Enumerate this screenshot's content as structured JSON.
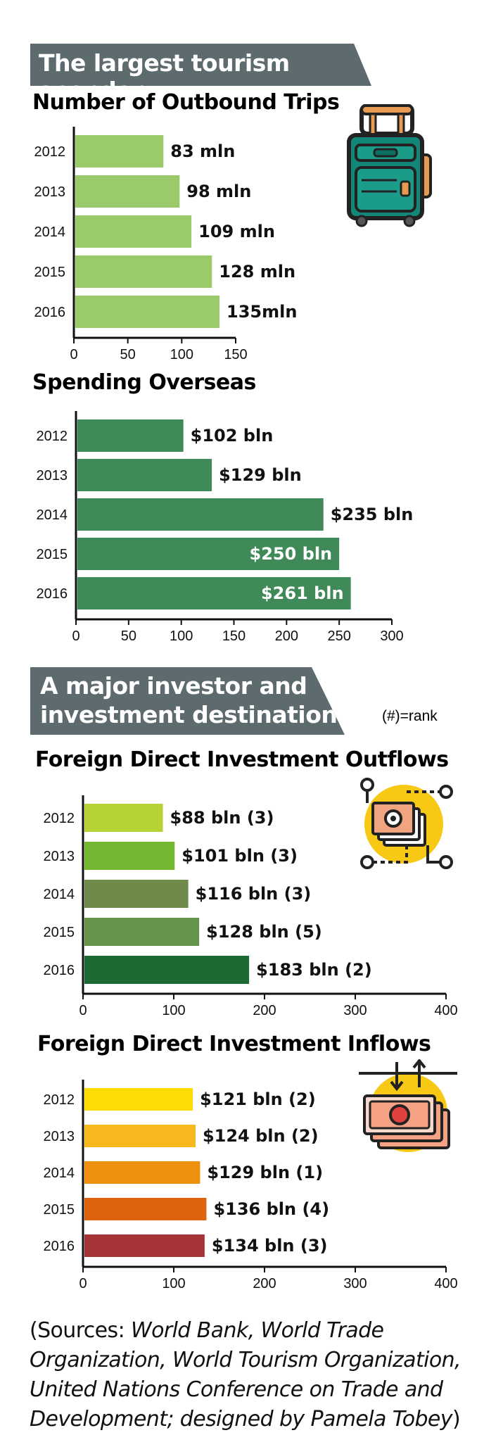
{
  "banners": {
    "tourism": "The largest tourism spender",
    "investment_line1": "A major investor and",
    "investment_line2": "investment destination"
  },
  "rank_note": "(#)=rank",
  "sources": {
    "open": "(Sources: ",
    "body": "World Bank, World Trade Organization, World Tourism Organization, United Nations Conference on Trade and Development; designed by Pamela Tobey",
    "close": ")"
  },
  "icons": {
    "trips_chart": "suitcase-icon",
    "outflows_chart": "money-out-icon",
    "inflows_chart": "money-in-icon"
  },
  "colors": {
    "banner": "#5d6b6e",
    "trips_bar": "#9bca6b",
    "spending_bar": "#3f8a58"
  },
  "chart_data": [
    {
      "id": "trips",
      "type": "bar",
      "orientation": "horizontal",
      "title": "Number of Outbound Trips",
      "categories": [
        "2012",
        "2013",
        "2014",
        "2015",
        "2016"
      ],
      "values": [
        83,
        98,
        109,
        128,
        135
      ],
      "labels": [
        "83 mln",
        "98 mln",
        "109 mln",
        "128 mln",
        "135mln"
      ],
      "colors": [
        "#9bca6b",
        "#9bca6b",
        "#9bca6b",
        "#9bca6b",
        "#9bca6b"
      ],
      "xlim": [
        0,
        150
      ],
      "xticks": [
        0,
        50,
        100,
        150
      ],
      "inside_labels": [
        false,
        false,
        false,
        false,
        false
      ]
    },
    {
      "id": "spending",
      "type": "bar",
      "orientation": "horizontal",
      "title": "Spending Overseas",
      "categories": [
        "2012",
        "2013",
        "2014",
        "2015",
        "2016"
      ],
      "values": [
        102,
        129,
        235,
        250,
        261
      ],
      "labels": [
        "$102 bln",
        "$129 bln",
        "$235 bln",
        "$250 bln",
        "$261 bln"
      ],
      "colors": [
        "#3f8a58",
        "#3f8a58",
        "#3f8a58",
        "#3f8a58",
        "#3f8a58"
      ],
      "xlim": [
        0,
        300
      ],
      "xticks": [
        0,
        50,
        100,
        150,
        200,
        250,
        300
      ],
      "inside_labels": [
        false,
        false,
        false,
        true,
        true
      ]
    },
    {
      "id": "outflows",
      "type": "bar",
      "orientation": "horizontal",
      "title": "Foreign Direct Investment Outflows",
      "categories": [
        "2012",
        "2013",
        "2014",
        "2015",
        "2016"
      ],
      "values": [
        88,
        101,
        116,
        128,
        183
      ],
      "ranks": [
        3,
        3,
        3,
        5,
        2
      ],
      "labels": [
        "$88 bln (3)",
        "$101 bln (3)",
        "$116 bln (3)",
        "$128 bln (5)",
        "$183 bln (2)"
      ],
      "colors": [
        "#b5d335",
        "#72b72f",
        "#6f8b4c",
        "#66944d",
        "#1c6b35"
      ],
      "xlim": [
        0,
        400
      ],
      "xticks": [
        0,
        100,
        200,
        300,
        400
      ],
      "inside_labels": [
        false,
        false,
        false,
        false,
        false
      ]
    },
    {
      "id": "inflows",
      "type": "bar",
      "orientation": "horizontal",
      "title": "Foreign Direct Investment Inflows",
      "categories": [
        "2012",
        "2013",
        "2014",
        "2015",
        "2016"
      ],
      "values": [
        121,
        124,
        129,
        136,
        134
      ],
      "ranks": [
        2,
        2,
        1,
        4,
        3
      ],
      "labels": [
        "$121 bln (2)",
        "$124 bln  (2)",
        "$129 bln  (1)",
        "$136 bln  (4)",
        "$134 bln  (3)"
      ],
      "colors": [
        "#fbdd05",
        "#f6b81d",
        "#ee8f0d",
        "#dd640f",
        "#a63436"
      ],
      "xlim": [
        0,
        400
      ],
      "xticks": [
        0,
        100,
        200,
        300,
        400
      ],
      "inside_labels": [
        false,
        false,
        false,
        false,
        false
      ]
    }
  ]
}
